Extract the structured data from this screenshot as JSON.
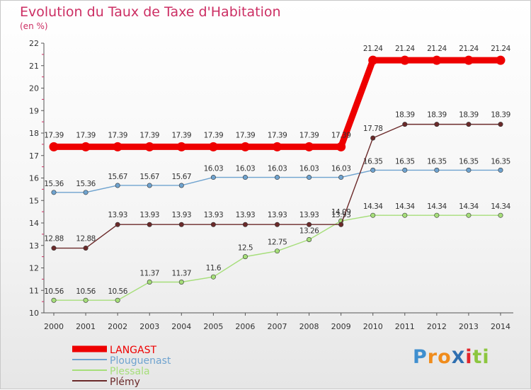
{
  "title": "Evolution du Taux de Taxe d'Habitation",
  "subtitle": "(en %)",
  "logo": {
    "text": "Proxiti",
    "letters": [
      {
        "ch": "P",
        "color": "#3f8fcf"
      },
      {
        "ch": "r",
        "color": "#f08c1c"
      },
      {
        "ch": "o",
        "color": "#f08c1c"
      },
      {
        "ch": "X",
        "color": "#2f6fb0"
      },
      {
        "ch": "i",
        "color": "#e2252b"
      },
      {
        "ch": "t",
        "color": "#8cc63f"
      },
      {
        "ch": "i",
        "color": "#8cc63f"
      }
    ]
  },
  "chart_data": {
    "type": "line",
    "x": [
      "2000",
      "2001",
      "2002",
      "2003",
      "2004",
      "2005",
      "2006",
      "2007",
      "2008",
      "2009",
      "2010",
      "2011",
      "2012",
      "2013",
      "2014"
    ],
    "ylim": [
      10,
      22
    ],
    "yticks": [
      10,
      11,
      12,
      13,
      14,
      15,
      16,
      17,
      18,
      19,
      20,
      21,
      22
    ],
    "grid": false,
    "legend_position": "bottom-left",
    "series": [
      {
        "name": "LANGAST",
        "color": "#ee0000",
        "values": [
          17.39,
          17.39,
          17.39,
          17.39,
          17.39,
          17.39,
          17.39,
          17.39,
          17.39,
          17.39,
          21.24,
          21.24,
          21.24,
          21.24,
          21.24
        ],
        "labels": [
          "17.39",
          "17.39",
          "17.39",
          "17.39",
          "17.39",
          "17.39",
          "17.39",
          "17.39",
          "17.39",
          "17.39",
          "21.24",
          "21.24",
          "21.24",
          "21.24",
          "21.24"
        ]
      },
      {
        "name": "Plouguenast",
        "color": "#6fa3cf",
        "values": [
          15.36,
          15.36,
          15.67,
          15.67,
          15.67,
          16.03,
          16.03,
          16.03,
          16.03,
          16.03,
          16.35,
          16.35,
          16.35,
          16.35,
          16.35
        ],
        "labels": [
          "15.36",
          "15.36",
          "15.67",
          "15.67",
          "15.67",
          "16.03",
          "16.03",
          "16.03",
          "16.03",
          "16.03",
          "16.35",
          "16.35",
          "16.35",
          "16.35",
          "16.35"
        ]
      },
      {
        "name": "Plessala",
        "color": "#a6de7a",
        "values": [
          10.56,
          10.56,
          10.56,
          11.37,
          11.37,
          11.6,
          12.5,
          12.75,
          13.26,
          14.09,
          14.34,
          14.34,
          14.34,
          14.34,
          14.34
        ],
        "labels": [
          "10.56",
          "10.56",
          "10.56",
          "11.37",
          "11.37",
          "11.6",
          "12.5",
          "12.75",
          "13.26",
          "14.09",
          "14.34",
          "14.34",
          "14.34",
          "14.34",
          "14.34"
        ]
      },
      {
        "name": "Plémy",
        "color": "#6b2a2a",
        "values": [
          12.88,
          12.88,
          13.93,
          13.93,
          13.93,
          13.93,
          13.93,
          13.93,
          13.93,
          13.93,
          17.78,
          18.39,
          18.39,
          18.39,
          18.39
        ],
        "labels": [
          "12.88",
          "12.88",
          "13.93",
          "13.93",
          "13.93",
          "13.93",
          "13.93",
          "13.93",
          "13.93",
          "13.93",
          "17.78",
          "18.39",
          "18.39",
          "18.39",
          "18.39"
        ]
      }
    ]
  }
}
